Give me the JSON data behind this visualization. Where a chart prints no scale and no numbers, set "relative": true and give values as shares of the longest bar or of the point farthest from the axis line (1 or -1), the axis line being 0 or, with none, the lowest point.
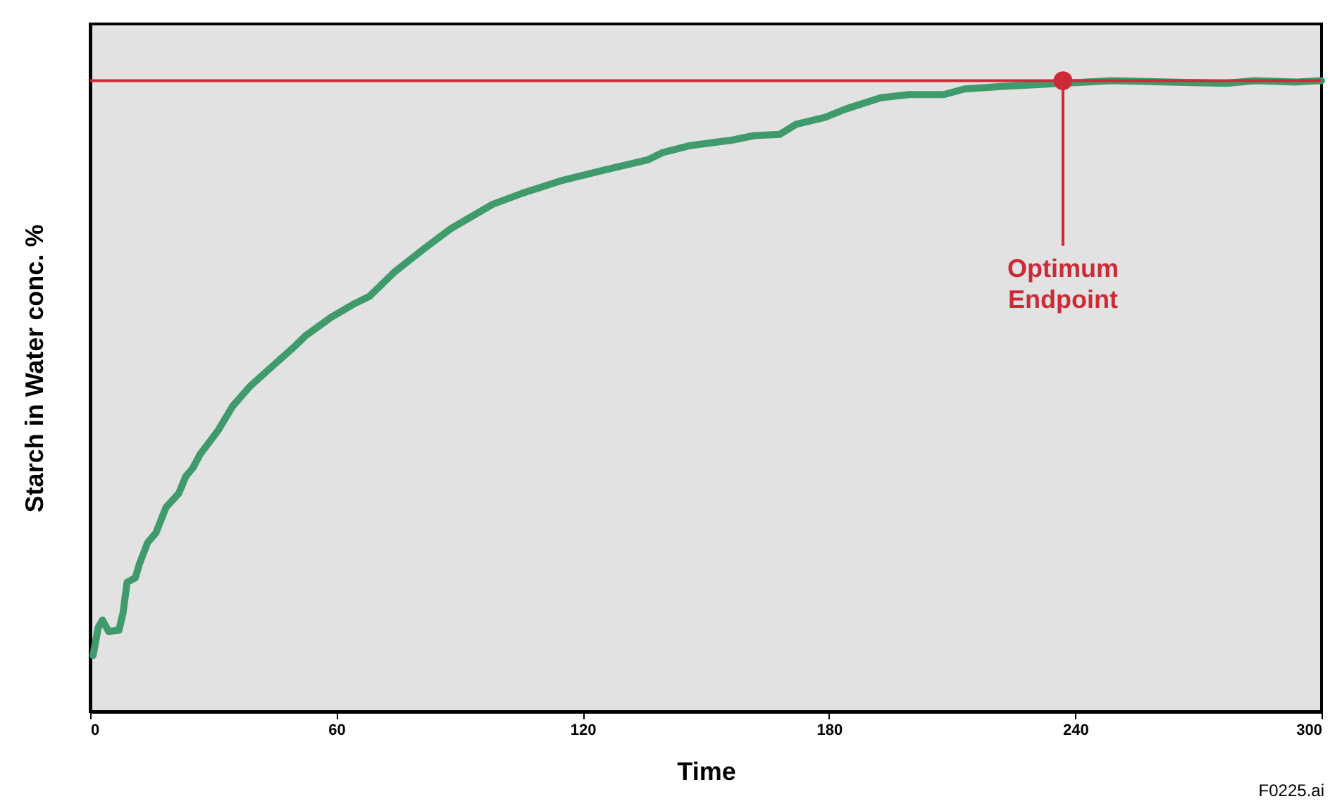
{
  "chart_data": {
    "type": "line",
    "relative": true,
    "xlabel": "Time",
    "ylabel": "Starch in Water conc. %",
    "xlim": [
      0,
      300
    ],
    "xticks": [
      0,
      60,
      120,
      180,
      240,
      300
    ],
    "marker": "none",
    "line_style": "solid",
    "x": [
      0.7,
      2,
      3,
      4.5,
      7,
      8,
      9,
      11,
      12,
      14,
      16,
      18.5,
      21.6,
      23.3,
      25,
      26.8,
      31.2,
      34.7,
      39,
      45,
      50,
      52.5,
      58.7,
      64.5,
      68,
      74,
      81,
      88,
      98,
      105,
      115,
      125.6,
      136,
      139.4,
      146,
      156.5,
      161.7,
      168,
      172,
      179,
      184,
      192.6,
      199.5,
      208,
      213,
      222,
      249,
      263,
      276.8,
      283.6,
      294,
      300
    ],
    "series": [
      {
        "color": "#3f9b6b",
        "values": [
          0.089,
          0.134,
          0.145,
          0.127,
          0.129,
          0.156,
          0.205,
          0.212,
          0.234,
          0.268,
          0.283,
          0.324,
          0.346,
          0.373,
          0.386,
          0.408,
          0.446,
          0.484,
          0.516,
          0.551,
          0.58,
          0.596,
          0.625,
          0.647,
          0.658,
          0.696,
          0.732,
          0.766,
          0.804,
          0.821,
          0.842,
          0.859,
          0.875,
          0.886,
          0.897,
          0.906,
          0.913,
          0.915,
          0.931,
          0.942,
          0.955,
          0.973,
          0.978,
          0.978,
          0.987,
          0.991,
          1.0,
          0.998,
          0.996,
          1.0,
          0.998,
          1.0
        ]
      }
    ],
    "ref_lines": [
      {
        "axis": "y",
        "value": 1.0,
        "color": "#cc2a36"
      }
    ],
    "annotations": [
      {
        "text": "Optimum Endpoint",
        "x": 237,
        "y": 1.0
      },
      "F0225.ai"
    ]
  }
}
